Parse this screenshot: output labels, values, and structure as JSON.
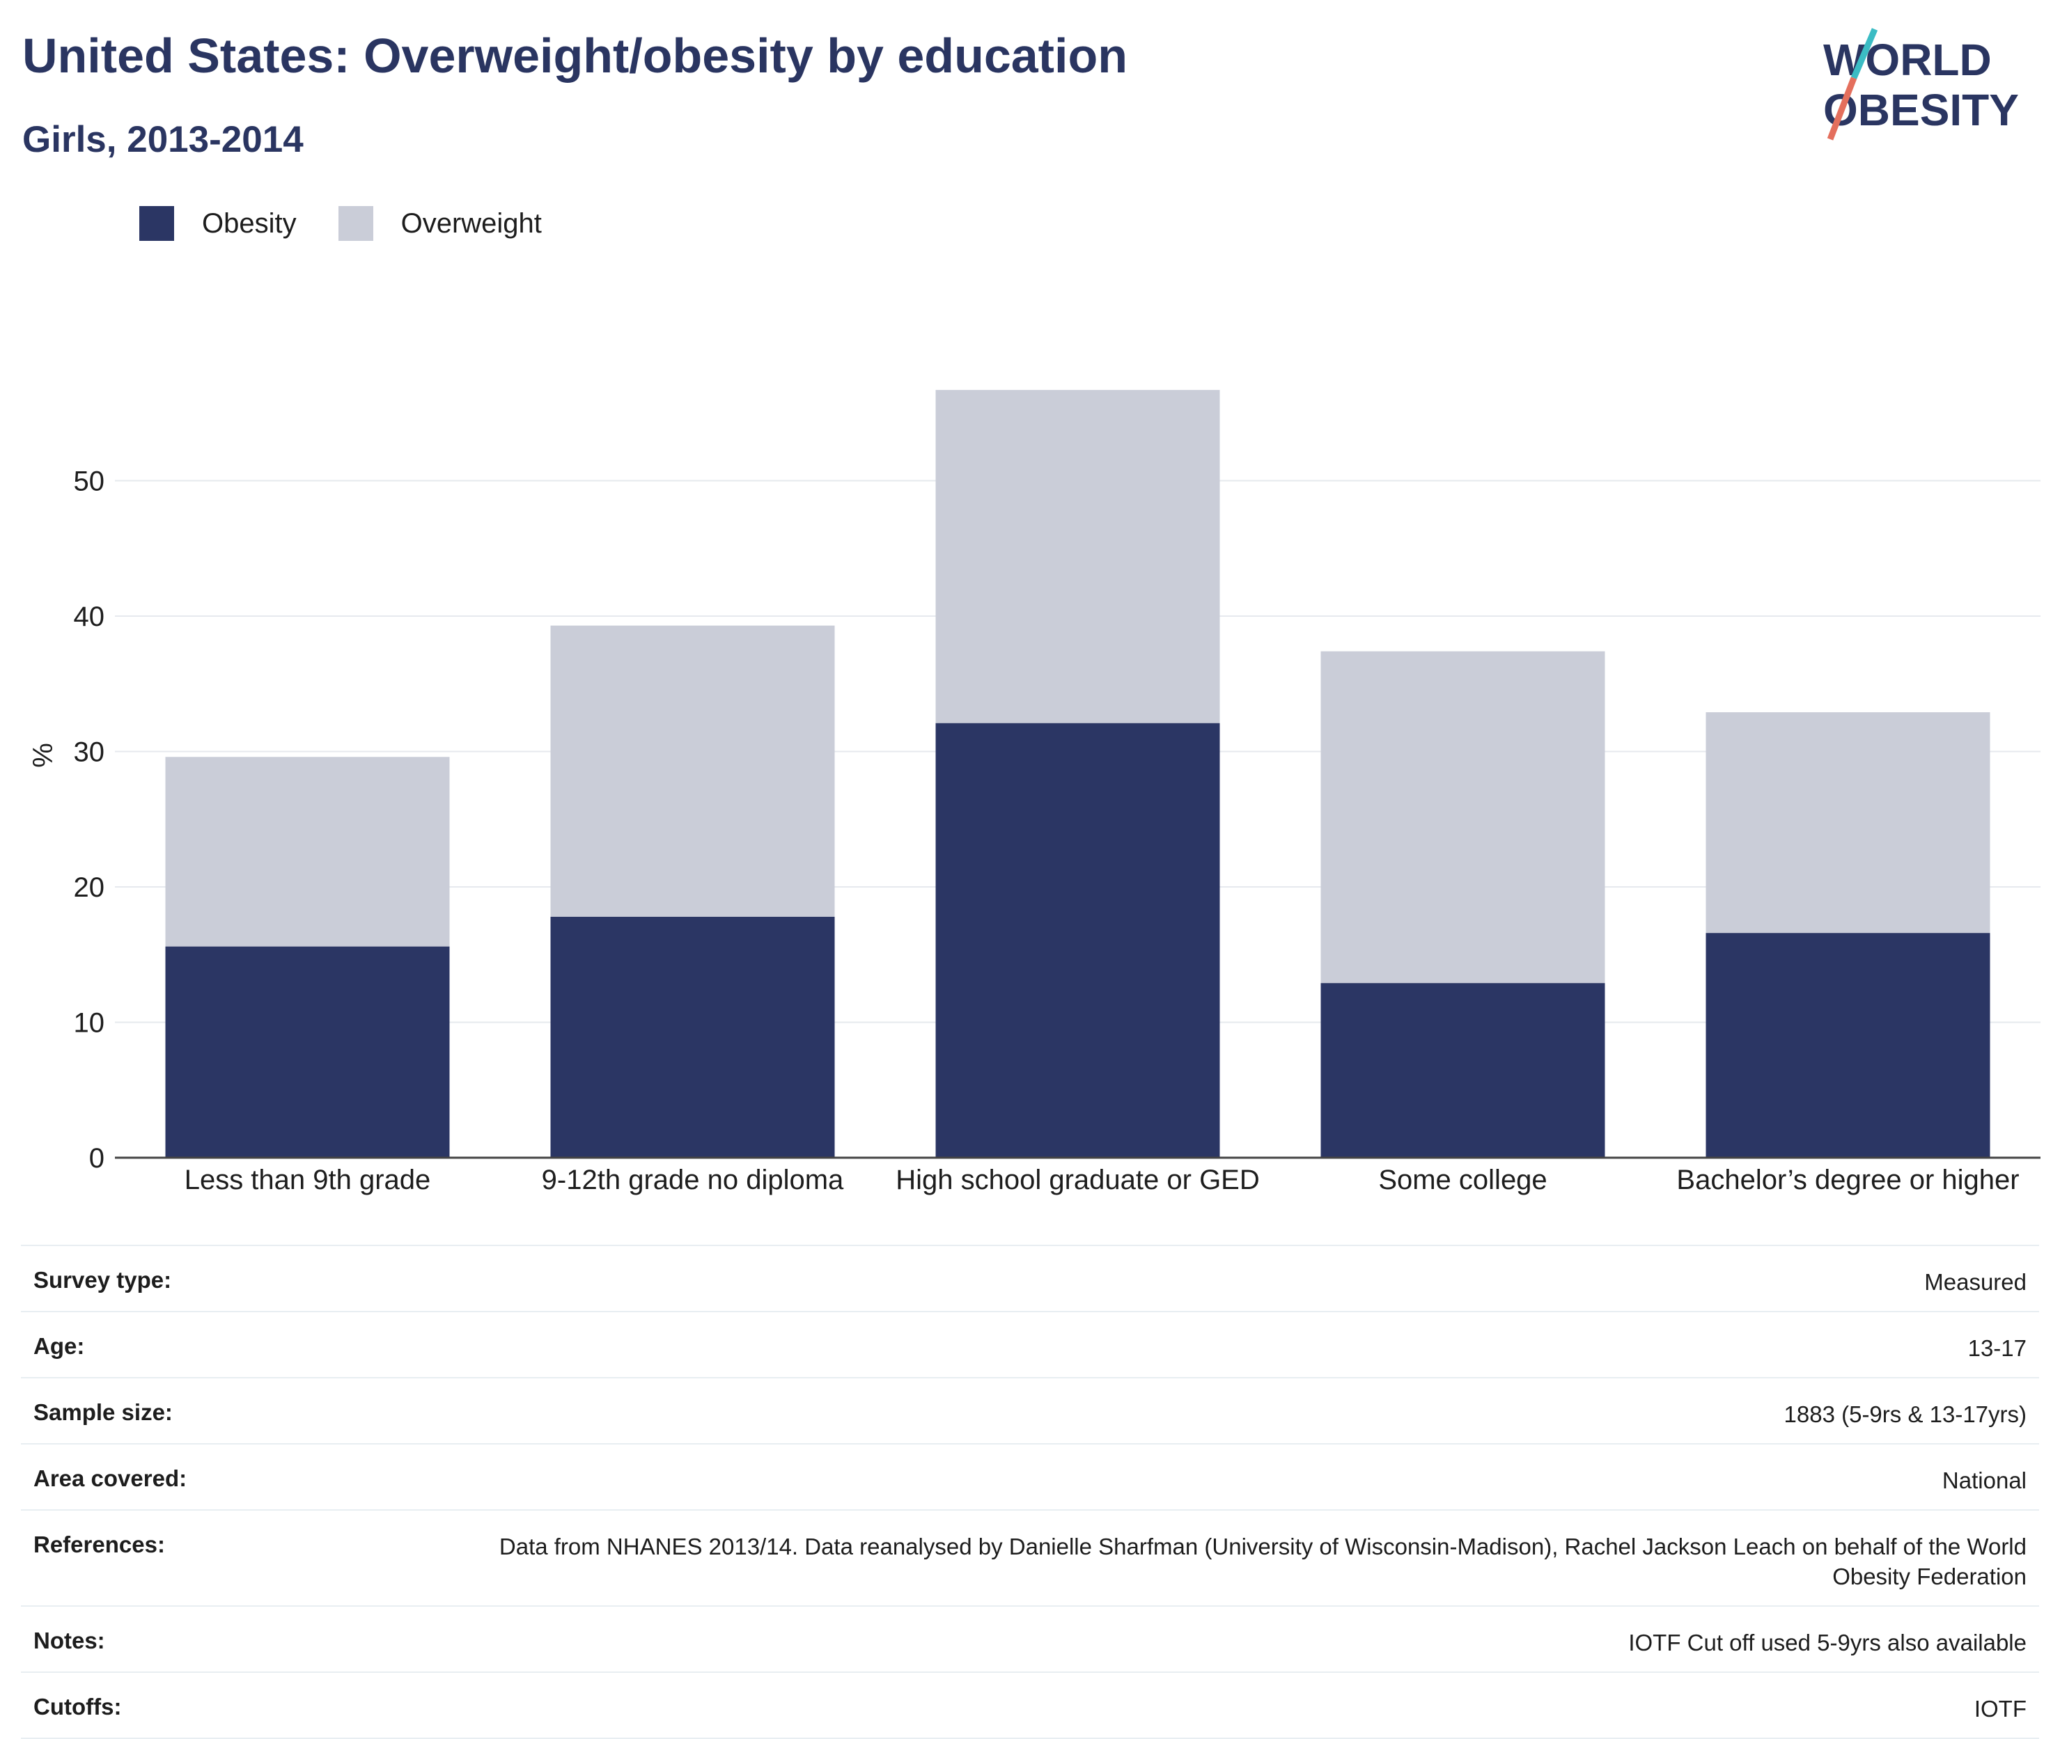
{
  "title": "United States: Overweight/obesity by education",
  "subtitle": "Girls, 2013-2014",
  "logo": {
    "line1": "WORLD",
    "line2": "OBESITY"
  },
  "colors": {
    "obesity": "#2b3664",
    "overweight": "#cacdd8",
    "text": "#2a3561"
  },
  "chart_data": {
    "type": "bar",
    "stacked": true,
    "categories": [
      "Less than 9th grade",
      "9-12th grade no diploma",
      "High school graduate or GED",
      "Some college",
      "Bachelor’s degree or higher"
    ],
    "series": [
      {
        "name": "Obesity",
        "values": [
          15.6,
          17.8,
          32.1,
          12.9,
          16.6
        ]
      },
      {
        "name": "Overweight",
        "values": [
          14.0,
          21.5,
          24.6,
          24.5,
          16.3
        ]
      }
    ],
    "ylabel": "%",
    "yticks": [
      0,
      10,
      20,
      30,
      40,
      50
    ],
    "ylim": [
      0,
      60
    ],
    "grid": true,
    "legend_position": "top-left"
  },
  "meta": [
    {
      "key": "Survey type:",
      "value": "Measured"
    },
    {
      "key": "Age:",
      "value": "13-17"
    },
    {
      "key": "Sample size:",
      "value": "1883 (5-9rs & 13-17yrs)"
    },
    {
      "key": "Area covered:",
      "value": "National"
    },
    {
      "key": "References:",
      "value": "Data from NHANES 2013/14. Data reanalysed by Danielle Sharfman (University of Wisconsin-Madison), Rachel Jackson Leach on behalf of the World Obesity Federation"
    },
    {
      "key": "Notes:",
      "value": "IOTF Cut off used 5-9yrs also available"
    },
    {
      "key": "Cutoffs:",
      "value": "IOTF"
    }
  ]
}
